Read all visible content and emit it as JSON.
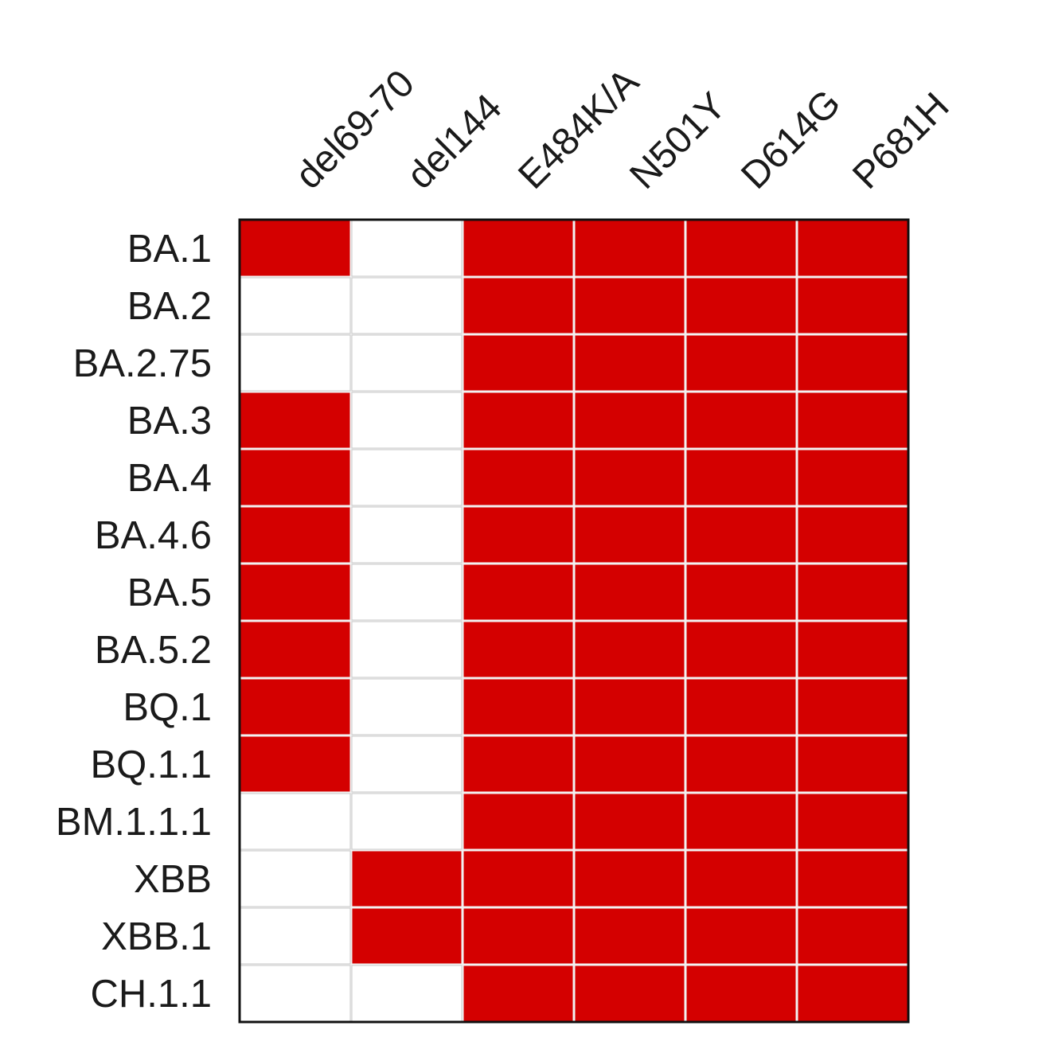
{
  "chart_data": {
    "type": "heatmap",
    "title": "",
    "xlabel": "",
    "ylabel": "",
    "columns": [
      "del69-70",
      "del144",
      "E484K/A",
      "N501Y",
      "D614G",
      "P681H"
    ],
    "rows": [
      "BA.1",
      "BA.2",
      "BA.2.75",
      "BA.3",
      "BA.4",
      "BA.4.6",
      "BA.5",
      "BA.5.2",
      "BQ.1",
      "BQ.1.1",
      "BM.1.1.1",
      "XBB",
      "XBB.1",
      "CH.1.1"
    ],
    "values": [
      [
        1,
        0,
        1,
        1,
        1,
        1
      ],
      [
        0,
        0,
        1,
        1,
        1,
        1
      ],
      [
        0,
        0,
        1,
        1,
        1,
        1
      ],
      [
        1,
        0,
        1,
        1,
        1,
        1
      ],
      [
        1,
        0,
        1,
        1,
        1,
        1
      ],
      [
        1,
        0,
        1,
        1,
        1,
        1
      ],
      [
        1,
        0,
        1,
        1,
        1,
        1
      ],
      [
        1,
        0,
        1,
        1,
        1,
        1
      ],
      [
        1,
        0,
        1,
        1,
        1,
        1
      ],
      [
        1,
        0,
        1,
        1,
        1,
        1
      ],
      [
        0,
        0,
        1,
        1,
        1,
        1
      ],
      [
        0,
        1,
        1,
        1,
        1,
        1
      ],
      [
        0,
        1,
        1,
        1,
        1,
        1
      ],
      [
        0,
        0,
        1,
        1,
        1,
        1
      ]
    ],
    "colors": {
      "present": "#d40000",
      "absent": "#ffffff",
      "grid": "#f2f2f2",
      "border": "#111111"
    },
    "legend": "none",
    "grid": true
  }
}
